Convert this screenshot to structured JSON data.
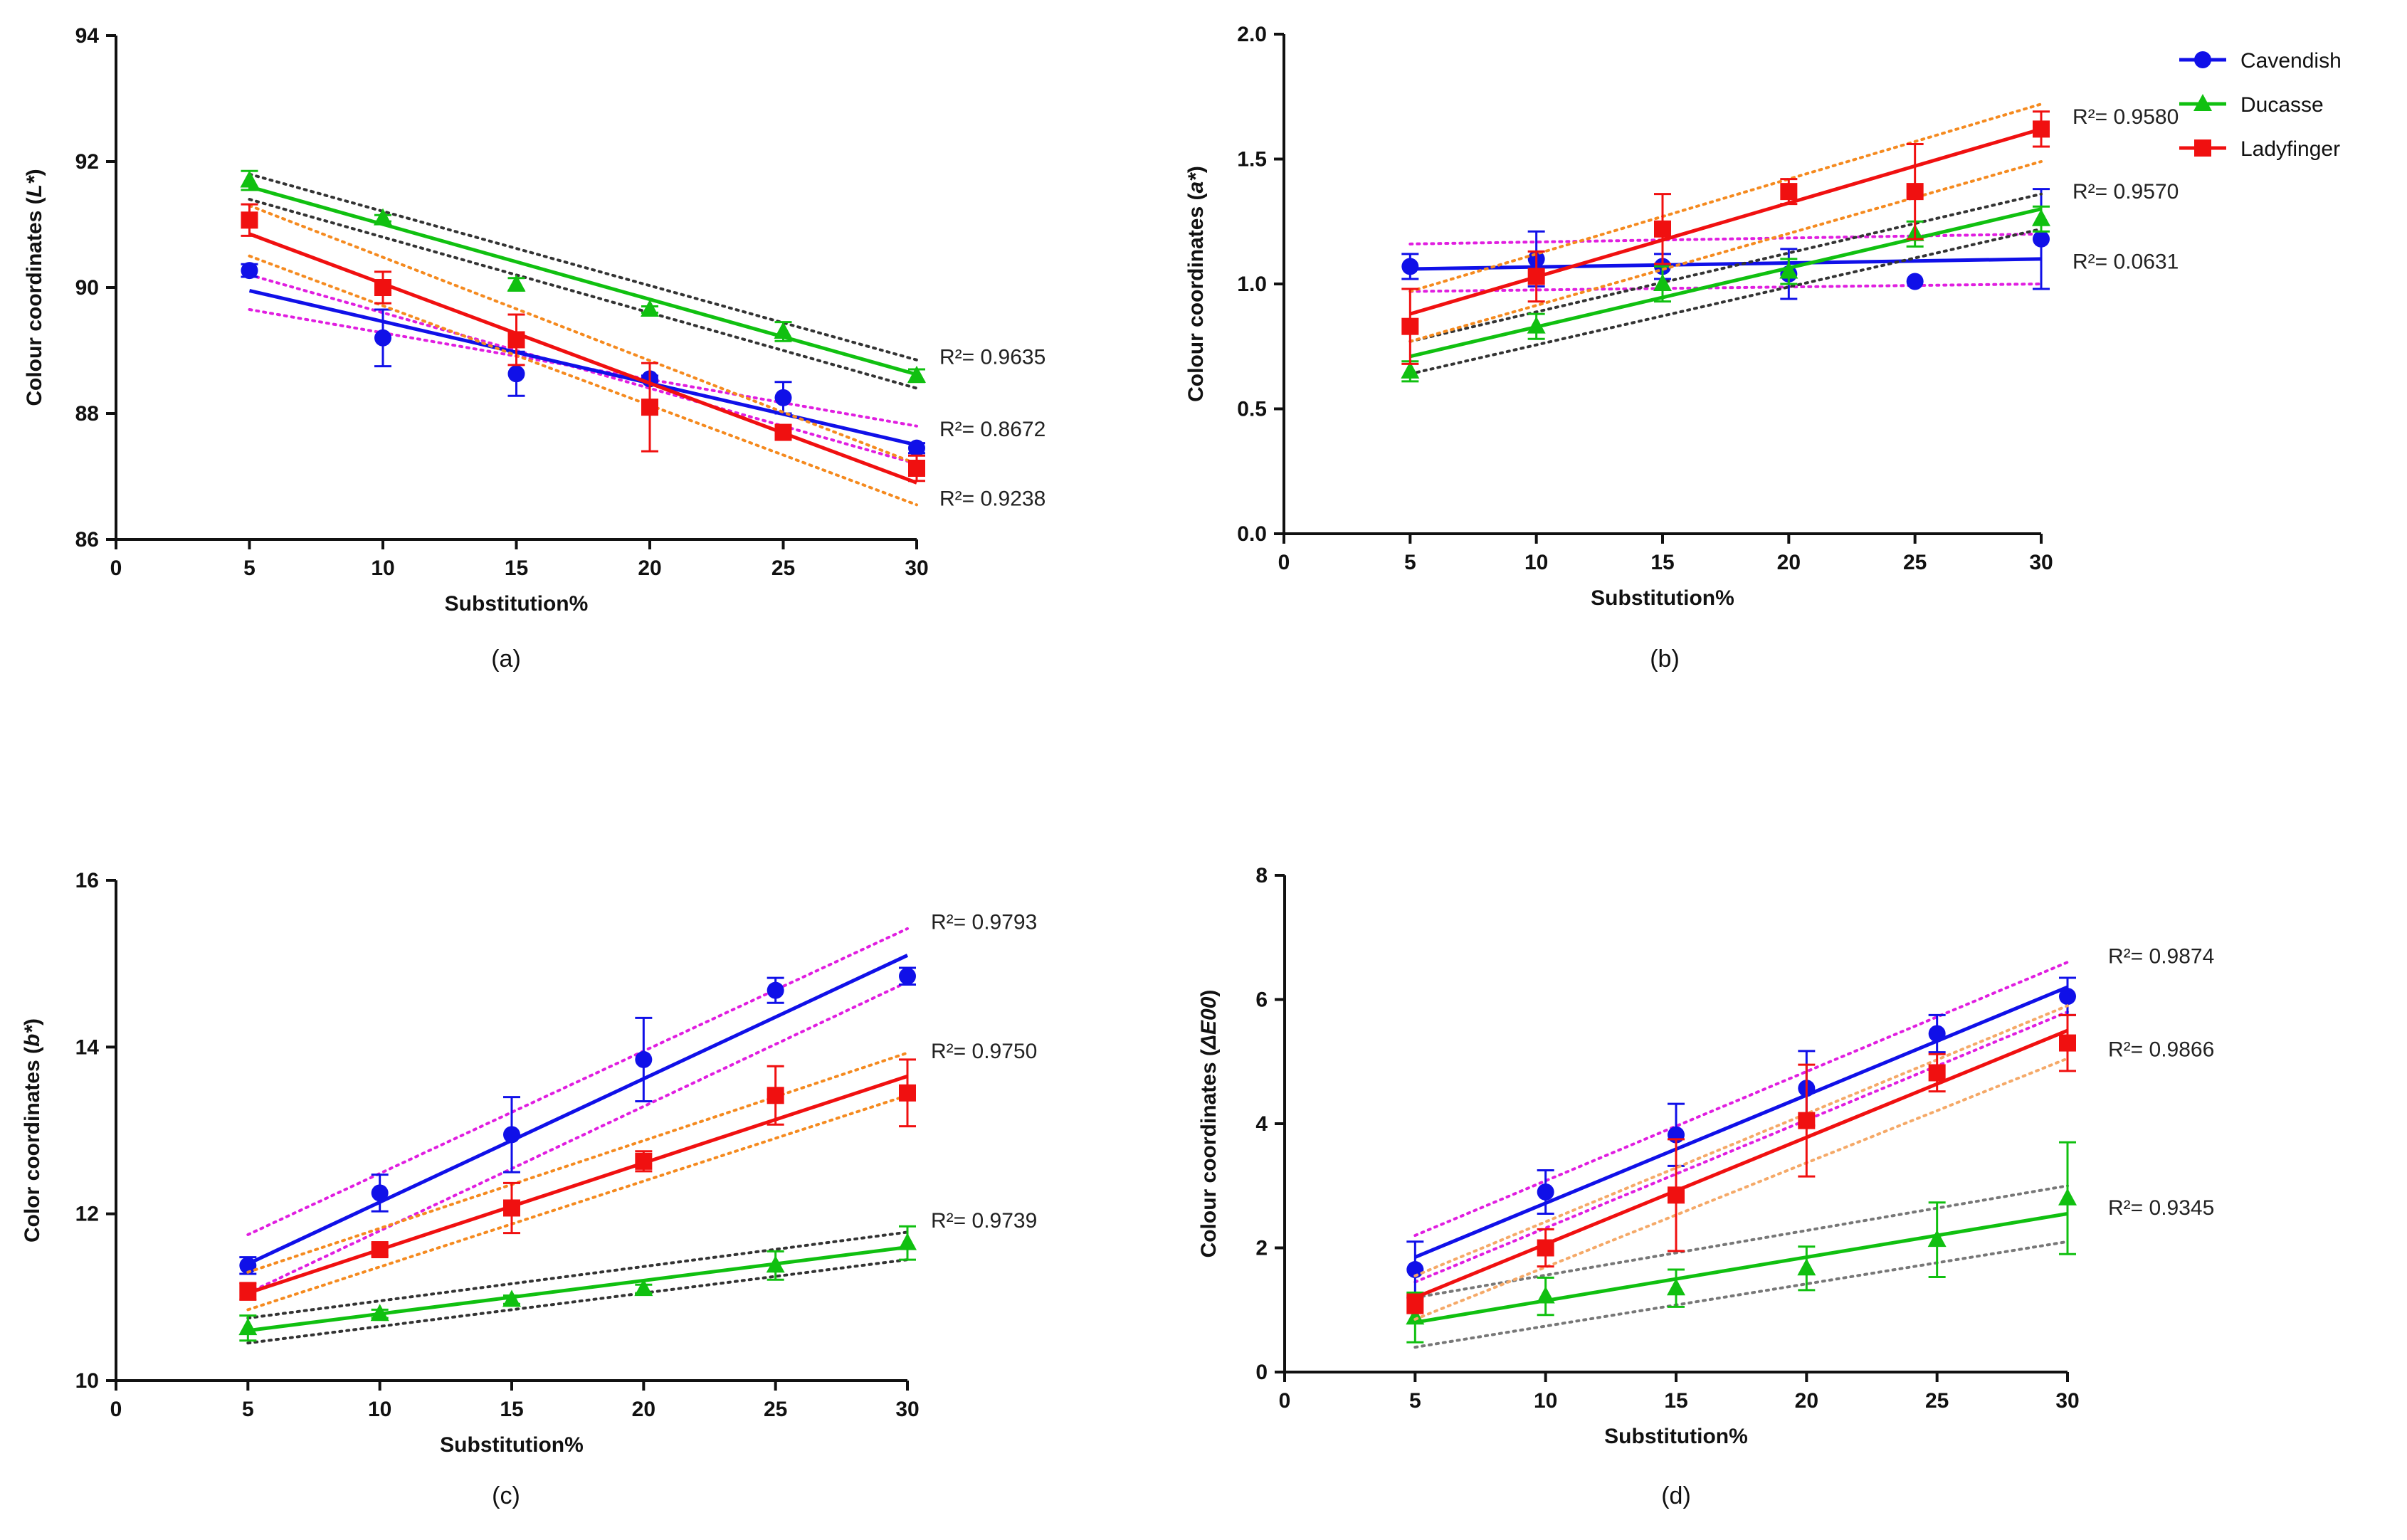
{
  "legend": [
    {
      "name": "Cavendish",
      "color": "#1010e8",
      "marker": "circle"
    },
    {
      "name": "Ducasse",
      "color": "#10c010",
      "marker": "triangle"
    },
    {
      "name": "Ladyfinger",
      "color": "#f01010",
      "marker": "square"
    }
  ],
  "chart_data": [
    {
      "id": "a",
      "type": "scatter",
      "panel_label": "(a)",
      "xlabel": "Substitution%",
      "ylabel_prefix": "Colour coordinates (",
      "ylabel_var": "L*",
      "ylabel_suffix": ")",
      "xlim": [
        0,
        30
      ],
      "ylim": [
        86,
        94
      ],
      "x_ticks": [
        0,
        5,
        10,
        15,
        20,
        25,
        30
      ],
      "y_ticks": [
        86,
        88,
        90,
        92,
        94
      ],
      "y_tick_labels": [
        "86",
        "88",
        "90",
        "92",
        "94"
      ],
      "x": [
        5,
        10,
        15,
        20,
        25,
        30
      ],
      "series": [
        {
          "name": "Cavendish",
          "color": "#1010e8",
          "marker": "circle",
          "values": [
            90.27,
            89.2,
            88.63,
            88.55,
            88.25,
            87.45
          ],
          "errors": [
            0.1,
            0.45,
            0.35,
            0.05,
            0.25,
            0.08
          ],
          "fit": [
            89.95,
            87.5
          ],
          "ci_color": "#e01ee0",
          "ci": [
            [
              90.2,
              87.2
            ],
            [
              89.65,
              87.8
            ]
          ]
        },
        {
          "name": "Ducasse",
          "color": "#10c010",
          "marker": "triangle",
          "values": [
            91.7,
            91.1,
            90.05,
            89.65,
            89.3,
            88.6
          ],
          "errors": [
            0.15,
            0.05,
            0.1,
            0.05,
            0.15,
            0.1
          ],
          "fit": [
            91.6,
            88.62
          ],
          "ci_color": "#333333",
          "ci": [
            [
              91.8,
              88.85
            ],
            [
              91.4,
              88.4
            ]
          ]
        },
        {
          "name": "Ladyfinger",
          "color": "#f01010",
          "marker": "square",
          "values": [
            91.07,
            90.0,
            89.17,
            88.1,
            87.7,
            87.13
          ],
          "errors": [
            0.25,
            0.25,
            0.4,
            0.7,
            0.1,
            0.2
          ],
          "fit": [
            90.85,
            86.9
          ],
          "ci_color": "#f58a1f",
          "ci": [
            [
              91.3,
              87.2
            ],
            [
              90.5,
              86.55
            ]
          ]
        }
      ],
      "r2_labels": [
        {
          "text": "R²= 0.9635",
          "y": 88.9
        },
        {
          "text": "R²= 0.8672",
          "y": 87.75
        },
        {
          "text": "R²= 0.9238",
          "y": 86.65
        }
      ]
    },
    {
      "id": "b",
      "type": "scatter",
      "panel_label": "(b)",
      "xlabel": "Substitution%",
      "ylabel_prefix": "Colour coordinates (",
      "ylabel_var": "a*",
      "ylabel_suffix": ")",
      "xlim": [
        0,
        30
      ],
      "ylim": [
        0,
        2.0
      ],
      "x_ticks": [
        0,
        5,
        10,
        15,
        20,
        25,
        30
      ],
      "y_ticks": [
        0,
        0.5,
        1.0,
        1.5,
        2.0
      ],
      "y_tick_labels": [
        "0.0",
        "0.5",
        "1.0",
        "1.5",
        "2.0"
      ],
      "x": [
        5,
        10,
        15,
        20,
        25,
        30
      ],
      "series": [
        {
          "name": "Cavendish",
          "color": "#1010e8",
          "marker": "circle",
          "values": [
            1.07,
            1.1,
            1.07,
            1.04,
            1.01,
            1.18
          ],
          "errors": [
            0.05,
            0.11,
            0.05,
            0.1,
            0.0,
            0.2
          ],
          "fit": [
            1.06,
            1.1
          ],
          "ci_color": "#e01ee0",
          "ci": [
            [
              1.16,
              1.2
            ],
            [
              0.97,
              1.0
            ]
          ]
        },
        {
          "name": "Ducasse",
          "color": "#10c010",
          "marker": "triangle",
          "values": [
            0.65,
            0.83,
            1.0,
            1.05,
            1.2,
            1.26
          ],
          "errors": [
            0.04,
            0.05,
            0.07,
            0.05,
            0.05,
            0.05
          ],
          "fit": [
            0.71,
            1.3
          ],
          "ci_color": "#333333",
          "ci": [
            [
              0.77,
              1.36
            ],
            [
              0.64,
              1.22
            ]
          ]
        },
        {
          "name": "Ladyfinger",
          "color": "#f01010",
          "marker": "square",
          "values": [
            0.83,
            1.03,
            1.22,
            1.37,
            1.37,
            1.62
          ],
          "errors": [
            0.15,
            0.1,
            0.14,
            0.05,
            0.19,
            0.07
          ],
          "fit": [
            0.88,
            1.62
          ],
          "ci_color": "#f58a1f",
          "ci": [
            [
              0.97,
              1.72
            ],
            [
              0.77,
              1.49
            ]
          ]
        }
      ],
      "r2_labels": [
        {
          "text": "R²= 0.9580",
          "y": 1.67
        },
        {
          "text": "R²= 0.9570",
          "y": 1.37
        },
        {
          "text": "R²= 0.0631",
          "y": 1.09
        }
      ]
    },
    {
      "id": "c",
      "type": "scatter",
      "panel_label": "(c)",
      "xlabel": "Substitution%",
      "ylabel_prefix": "Color coordinates (",
      "ylabel_var": "b*",
      "ylabel_suffix": ")",
      "xlim": [
        0,
        30
      ],
      "ylim": [
        10,
        16
      ],
      "x_ticks": [
        0,
        5,
        10,
        15,
        20,
        25,
        30
      ],
      "y_ticks": [
        10,
        12,
        14,
        16
      ],
      "y_tick_labels": [
        "10",
        "12",
        "14",
        "16"
      ],
      "x": [
        5,
        10,
        15,
        20,
        25,
        30
      ],
      "series": [
        {
          "name": "Cavendish",
          "color": "#1010e8",
          "marker": "circle",
          "values": [
            11.38,
            12.25,
            12.95,
            13.85,
            14.68,
            14.85
          ],
          "errors": [
            0.1,
            0.22,
            0.45,
            0.5,
            0.15,
            0.1
          ],
          "fit": [
            11.4,
            15.1
          ],
          "ci_color": "#e01ee0",
          "ci": [
            [
              11.75,
              15.42
            ],
            [
              11.05,
              14.78
            ]
          ]
        },
        {
          "name": "Ducasse",
          "color": "#10c010",
          "marker": "triangle",
          "values": [
            10.63,
            10.8,
            10.97,
            11.1,
            11.38,
            11.65
          ],
          "errors": [
            0.15,
            0.05,
            0.05,
            0.05,
            0.17,
            0.2
          ],
          "fit": [
            10.6,
            11.6
          ],
          "ci_color": "#333333",
          "ci": [
            [
              10.75,
              11.78
            ],
            [
              10.45,
              11.45
            ]
          ]
        },
        {
          "name": "Ladyfinger",
          "color": "#f01010",
          "marker": "square",
          "values": [
            11.07,
            11.57,
            12.07,
            12.63,
            13.42,
            13.45
          ],
          "errors": [
            0.1,
            0.07,
            0.3,
            0.12,
            0.35,
            0.4
          ],
          "fit": [
            11.05,
            13.65
          ],
          "ci_color": "#f58a1f",
          "ci": [
            [
              11.3,
              13.93
            ],
            [
              10.85,
              13.42
            ]
          ]
        }
      ],
      "r2_labels": [
        {
          "text": "R²= 0.9793",
          "y": 15.5
        },
        {
          "text": "R²= 0.9750",
          "y": 13.95
        },
        {
          "text": "R²= 0.9739",
          "y": 11.92
        }
      ]
    },
    {
      "id": "d",
      "type": "scatter",
      "panel_label": "(d)",
      "xlabel": "Substitution%",
      "ylabel_prefix": "Colour coordinates (",
      "ylabel_var": "ΔE00",
      "ylabel_suffix": ")",
      "xlim": [
        0,
        30
      ],
      "ylim": [
        0,
        8
      ],
      "x_ticks": [
        0,
        5,
        10,
        15,
        20,
        25,
        30
      ],
      "y_ticks": [
        0,
        2,
        4,
        6,
        8
      ],
      "y_tick_labels": [
        "0",
        "2",
        "4",
        "6",
        "8"
      ],
      "x": [
        5,
        10,
        15,
        20,
        25,
        30
      ],
      "series": [
        {
          "name": "Cavendish",
          "color": "#1010e8",
          "marker": "circle",
          "values": [
            1.65,
            2.9,
            3.82,
            4.57,
            5.45,
            6.05
          ],
          "errors": [
            0.45,
            0.35,
            0.5,
            0.6,
            0.3,
            0.3
          ],
          "fit": [
            1.85,
            6.2
          ],
          "ci_color": "#e01ee0",
          "ci": [
            [
              2.2,
              6.6
            ],
            [
              1.45,
              5.8
            ]
          ]
        },
        {
          "name": "Ducasse",
          "color": "#10c010",
          "marker": "triangle",
          "values": [
            0.88,
            1.22,
            1.35,
            1.67,
            2.13,
            2.8
          ],
          "errors": [
            0.4,
            0.3,
            0.3,
            0.35,
            0.6,
            0.9
          ],
          "fit": [
            0.8,
            2.55
          ],
          "ci_color": "#777777",
          "ci": [
            [
              1.2,
              3.0
            ],
            [
              0.4,
              2.1
            ]
          ]
        },
        {
          "name": "Ladyfinger",
          "color": "#f01010",
          "marker": "square",
          "values": [
            1.1,
            2.0,
            2.85,
            4.05,
            4.82,
            5.3
          ],
          "errors": [
            0.15,
            0.3,
            0.9,
            0.9,
            0.3,
            0.45
          ],
          "fit": [
            1.2,
            5.5
          ],
          "ci_color": "#f5a968",
          "ci": [
            [
              1.55,
              5.9
            ],
            [
              0.85,
              5.05
            ]
          ]
        }
      ],
      "r2_labels": [
        {
          "text": "R²= 0.9874",
          "y": 6.7
        },
        {
          "text": "R²= 0.9866",
          "y": 5.2
        },
        {
          "text": "R²= 0.9345",
          "y": 2.65
        }
      ]
    }
  ]
}
